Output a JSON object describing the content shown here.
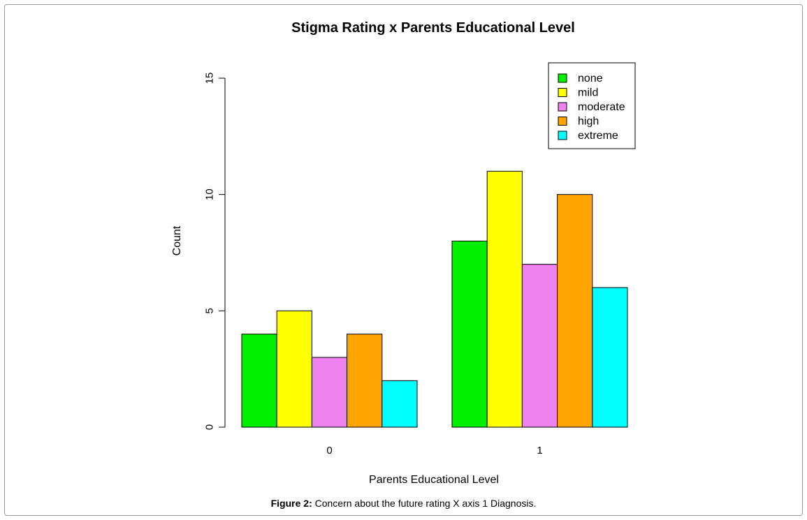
{
  "chart_data": {
    "type": "bar",
    "title": "Stigma Rating x Parents Educational Level",
    "xlabel": "Parents Educational Level",
    "ylabel": "Count",
    "categories": [
      "0",
      "1"
    ],
    "series": [
      {
        "name": "none",
        "color": "#00ee00",
        "values": [
          4,
          8
        ]
      },
      {
        "name": "mild",
        "color": "#ffff00",
        "values": [
          5,
          11
        ]
      },
      {
        "name": "moderate",
        "color": "#ee82ee",
        "values": [
          3,
          7
        ]
      },
      {
        "name": "high",
        "color": "#ffa500",
        "values": [
          4,
          10
        ]
      },
      {
        "name": "extreme",
        "color": "#00ffff",
        "values": [
          2,
          6
        ]
      }
    ],
    "ylim": [
      0,
      15
    ],
    "yticks": [
      "0",
      "5",
      "10",
      "15"
    ],
    "legend_position": "top-right",
    "grid": false
  },
  "caption": {
    "label": "Figure 2:",
    "text": " Concern about the future rating X axis 1 Diagnosis."
  }
}
